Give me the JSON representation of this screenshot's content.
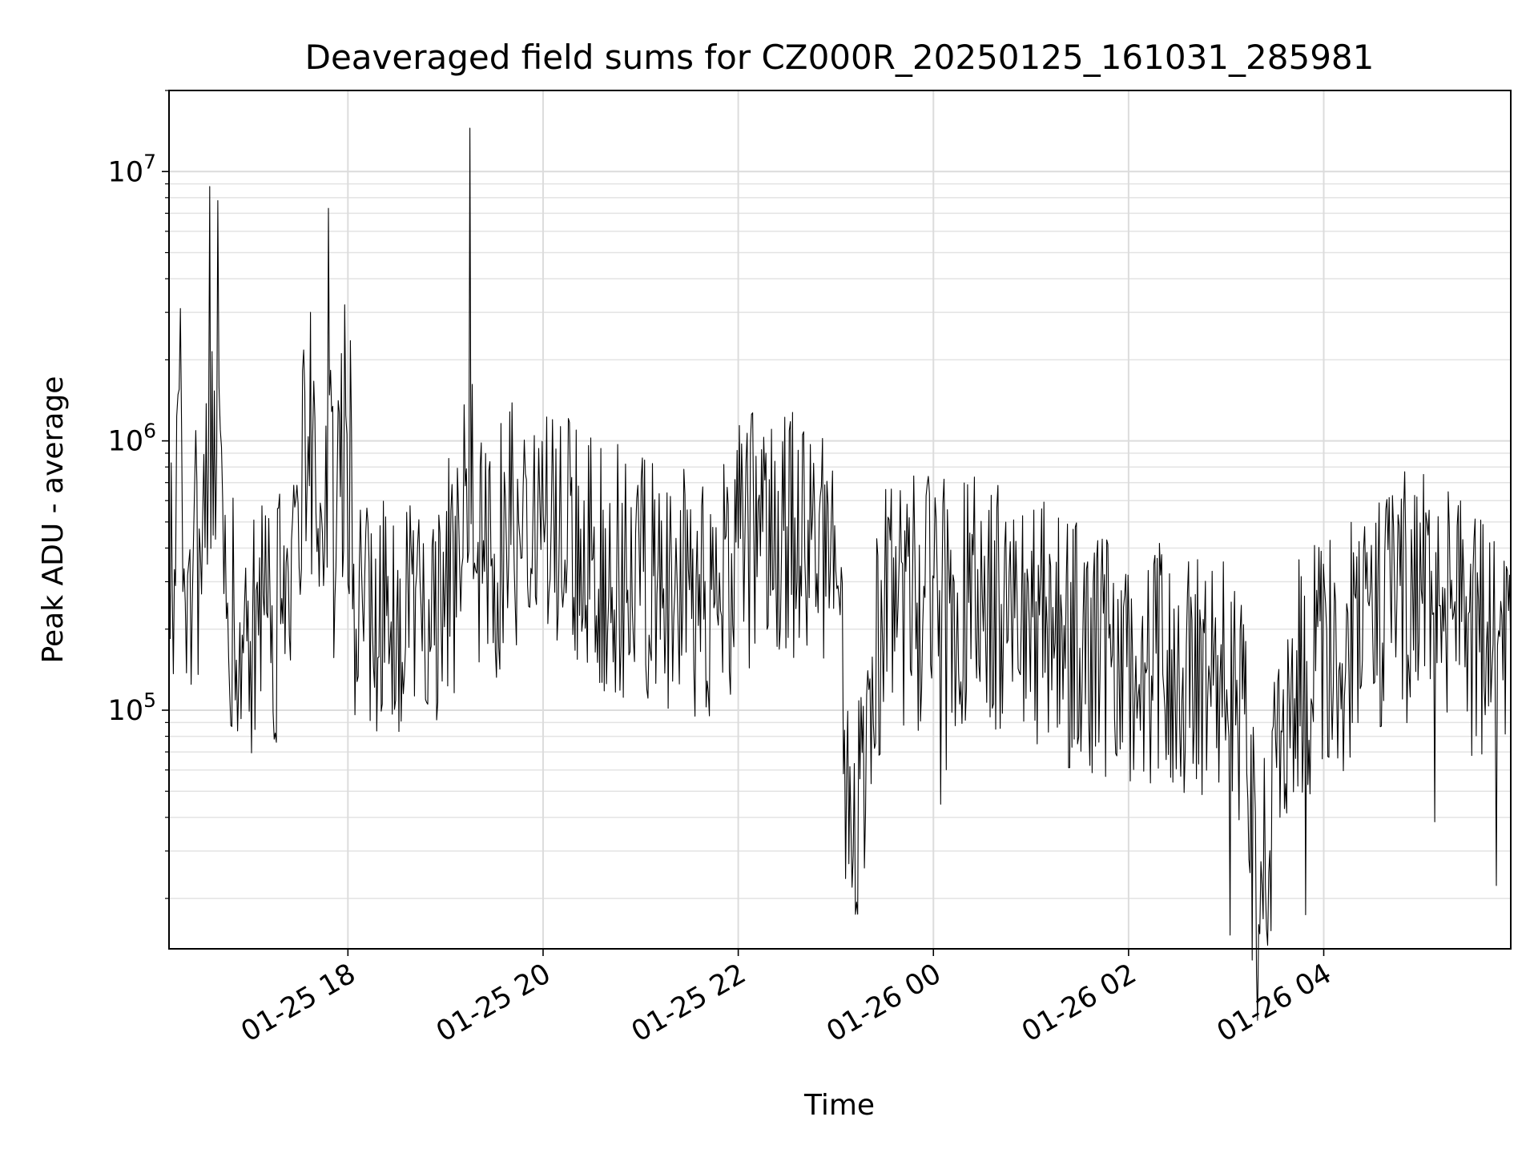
{
  "chart_data": {
    "type": "line",
    "title": "Deaveraged field sums for CZ000R_20250125_161031_285981",
    "xlabel": "Time",
    "ylabel": "Peak ADU - average",
    "yscale": "log",
    "ylim": [
      13000,
      20000000
    ],
    "xlim": [
      "2025-01-25 16:10",
      "2025-01-26 05:55"
    ],
    "x_ticks": [
      {
        "value": "2025-01-25 18:00",
        "label": "01-25 18"
      },
      {
        "value": "2025-01-25 20:00",
        "label": "01-25 20"
      },
      {
        "value": "2025-01-25 22:00",
        "label": "01-25 22"
      },
      {
        "value": "2025-01-26 00:00",
        "label": "01-26 00"
      },
      {
        "value": "2025-01-26 02:00",
        "label": "01-26 02"
      },
      {
        "value": "2025-01-26 04:00",
        "label": "01-26 04"
      }
    ],
    "y_ticks": [
      {
        "value": 100000,
        "base": "10",
        "exp": "5"
      },
      {
        "value": 1000000,
        "base": "10",
        "exp": "6"
      },
      {
        "value": 10000000,
        "base": "10",
        "exp": "7"
      }
    ],
    "grid": true,
    "line_color": "#000000",
    "series": [
      {
        "x": [
          "2025-01-25 16:10",
          "2025-01-25 16:14",
          "2025-01-25 16:17",
          "2025-01-25 16:20",
          "2025-01-25 16:25",
          "2025-01-25 16:30",
          "2025-01-25 16:35",
          "2025-01-25 16:40",
          "2025-01-25 16:43",
          "2025-01-25 16:46",
          "2025-01-25 16:50",
          "2025-01-25 16:55",
          "2025-01-25 17:00",
          "2025-01-25 17:05",
          "2025-01-25 17:10",
          "2025-01-25 17:20",
          "2025-01-25 17:30",
          "2025-01-25 17:37",
          "2025-01-25 17:45",
          "2025-01-25 17:48",
          "2025-01-25 17:52",
          "2025-01-25 17:58",
          "2025-01-25 18:05",
          "2025-01-25 18:15",
          "2025-01-25 18:30",
          "2025-01-25 18:45",
          "2025-01-25 19:00",
          "2025-01-25 19:10",
          "2025-01-25 19:15",
          "2025-01-25 19:20",
          "2025-01-25 19:30",
          "2025-01-25 19:45",
          "2025-01-25 19:58",
          "2025-01-25 20:10",
          "2025-01-25 20:30",
          "2025-01-25 20:50",
          "2025-01-25 21:10",
          "2025-01-25 21:30",
          "2025-01-25 21:45",
          "2025-01-25 22:00",
          "2025-01-25 22:15",
          "2025-01-25 22:30",
          "2025-01-25 22:45",
          "2025-01-25 23:00",
          "2025-01-25 23:10",
          "2025-01-25 23:30",
          "2025-01-25 23:50",
          "2025-01-26 00:10",
          "2025-01-26 00:30",
          "2025-01-26 00:50",
          "2025-01-26 01:10",
          "2025-01-26 01:30",
          "2025-01-26 01:50",
          "2025-01-26 02:10",
          "2025-01-26 02:30",
          "2025-01-26 02:50",
          "2025-01-26 03:10",
          "2025-01-26 03:20",
          "2025-01-26 03:40",
          "2025-01-26 03:55",
          "2025-01-26 04:10",
          "2025-01-26 04:30",
          "2025-01-26 04:45",
          "2025-01-26 05:00",
          "2025-01-26 05:20",
          "2025-01-26 05:40",
          "2025-01-26 05:55"
        ],
        "y": [
          350000,
          290000,
          3100000,
          250000,
          420000,
          270000,
          8800000,
          7800000,
          600000,
          250000,
          230000,
          190000,
          180000,
          190000,
          230000,
          210000,
          340000,
          3000000,
          290000,
          7300000,
          260000,
          3200000,
          200000,
          210000,
          220000,
          240000,
          290000,
          340000,
          14500000,
          420000,
          380000,
          500000,
          600000,
          460000,
          360000,
          330000,
          270000,
          280000,
          240000,
          400000,
          460000,
          480000,
          430000,
          330000,
          22000,
          280000,
          250000,
          250000,
          270000,
          220000,
          200000,
          170000,
          160000,
          150000,
          140000,
          130000,
          110000,
          16000,
          130000,
          140000,
          150000,
          210000,
          260000,
          280000,
          230000,
          170000,
          150000
        ]
      }
    ]
  }
}
